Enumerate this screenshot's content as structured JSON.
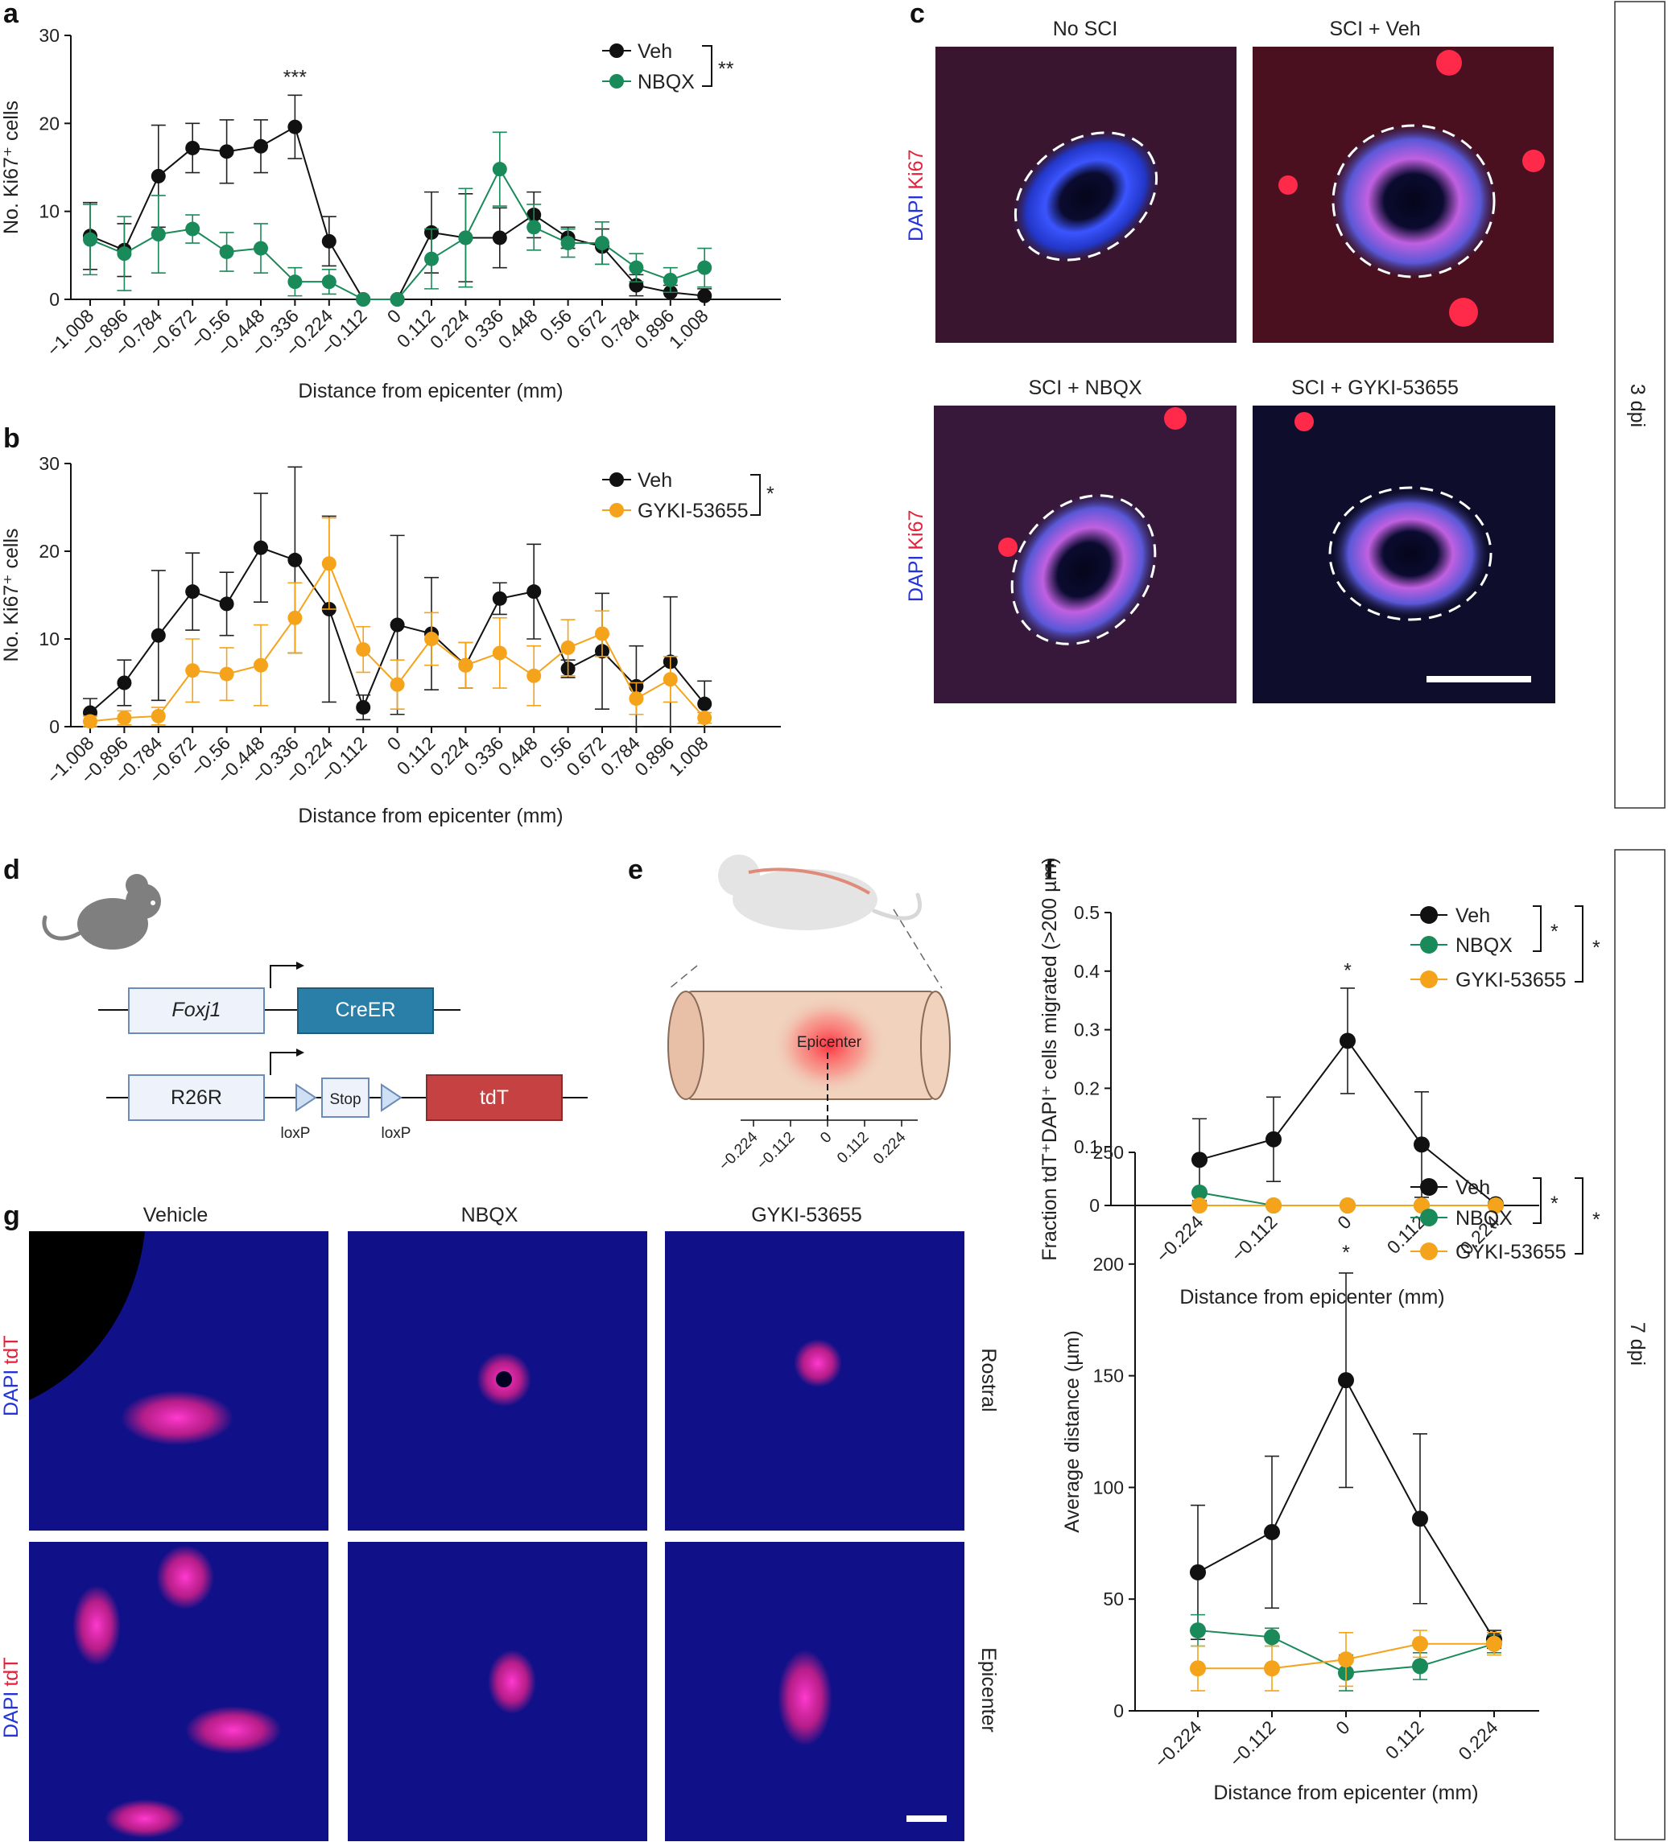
{
  "panels": {
    "a": "a",
    "b": "b",
    "c": "c",
    "d": "d",
    "e": "e",
    "f": "f",
    "g": "g"
  },
  "colors": {
    "veh": "#111111",
    "nbqx": "#1a8a5a",
    "gyki": "#f5a31a",
    "dapi": "#2233dd",
    "stain": "#e8203a"
  },
  "side_labels": {
    "top": "3 dpi",
    "bottom": "7 dpi"
  },
  "chart_data": [
    {
      "id": "a",
      "type": "line",
      "ylabel": "No. Ki67⁺ cells",
      "xlabel": "Distance from epicenter (mm)",
      "ylim": [
        0,
        30
      ],
      "yticks": [
        0,
        10,
        20,
        30
      ],
      "categories": [
        "−1.008",
        "−0.896",
        "−0.784",
        "−0.672",
        "−0.56",
        "−0.448",
        "−0.336",
        "−0.224",
        "−0.112",
        "0",
        "0.112",
        "0.224",
        "0.336",
        "0.448",
        "0.56",
        "0.672",
        "0.784",
        "0.896",
        "1.008"
      ],
      "series": [
        {
          "name": "Veh",
          "color": "#111111",
          "values": [
            7.2,
            5.6,
            14.0,
            17.2,
            16.8,
            17.4,
            19.6,
            6.6,
            0,
            0,
            7.6,
            7.0,
            7.0,
            9.6,
            7.0,
            6.0,
            1.6,
            0.8,
            0.4
          ],
          "err": [
            3.8,
            3.0,
            5.8,
            2.8,
            3.6,
            3.0,
            3.6,
            2.8,
            0,
            0,
            4.6,
            5.0,
            3.4,
            2.6,
            1.2,
            2.0,
            1.2,
            0.8,
            0.8
          ]
        },
        {
          "name": "NBQX",
          "color": "#1a8a5a",
          "values": [
            6.8,
            5.2,
            7.4,
            8.0,
            5.4,
            5.8,
            2.0,
            2.0,
            0,
            0,
            4.6,
            7.0,
            14.8,
            8.2,
            6.4,
            6.4,
            3.6,
            2.2,
            3.6
          ],
          "err": [
            4.0,
            4.2,
            4.4,
            1.6,
            2.2,
            2.8,
            1.6,
            1.4,
            0,
            0,
            3.4,
            5.6,
            4.2,
            2.6,
            1.6,
            2.4,
            1.6,
            1.4,
            2.2
          ]
        }
      ],
      "annotations": [
        "***",
        "**"
      ]
    },
    {
      "id": "b",
      "type": "line",
      "ylabel": "No. Ki67⁺ cells",
      "xlabel": "Distance from epicenter (mm)",
      "ylim": [
        0,
        30
      ],
      "yticks": [
        0,
        10,
        20,
        30
      ],
      "categories": [
        "−1.008",
        "−0.896",
        "−0.784",
        "−0.672",
        "−0.56",
        "−0.448",
        "−0.336",
        "−0.224",
        "−0.112",
        "0",
        "0.112",
        "0.224",
        "0.336",
        "0.448",
        "0.56",
        "0.672",
        "0.784",
        "0.896",
        "1.008"
      ],
      "series": [
        {
          "name": "Veh",
          "color": "#111111",
          "values": [
            1.6,
            5.0,
            10.4,
            15.4,
            14.0,
            20.4,
            19.0,
            13.4,
            2.2,
            11.6,
            10.6,
            7.0,
            14.6,
            15.4,
            6.6,
            8.6,
            4.6,
            7.4,
            2.6
          ],
          "err": [
            1.6,
            2.6,
            7.4,
            4.4,
            3.6,
            6.2,
            10.6,
            10.6,
            1.4,
            10.2,
            6.4,
            2.6,
            1.8,
            5.4,
            1.0,
            6.6,
            4.6,
            7.4,
            2.6
          ]
        },
        {
          "name": "GYKI-53655",
          "color": "#f5a31a",
          "values": [
            0.6,
            1.0,
            1.2,
            6.4,
            6.0,
            7.0,
            12.4,
            18.6,
            8.8,
            4.8,
            10.0,
            7.0,
            8.4,
            5.8,
            9.0,
            10.6,
            3.2,
            5.4,
            1.0
          ],
          "err": [
            0.6,
            0.8,
            1.0,
            3.6,
            3.0,
            4.6,
            4.0,
            5.2,
            2.6,
            2.8,
            3.0,
            2.6,
            4.0,
            3.4,
            3.2,
            2.6,
            1.8,
            2.6,
            0.6
          ]
        }
      ],
      "annotations": [
        "*"
      ]
    },
    {
      "id": "f_top",
      "type": "line",
      "ylabel": "Fraction tdT⁺DAPI⁺ cells migrated (>200 µm)",
      "xlabel": "Distance from epicenter (mm)",
      "ylim": [
        0,
        0.5
      ],
      "yticks": [
        0,
        0.1,
        0.2,
        0.3,
        0.4,
        0.5
      ],
      "categories": [
        "−0.224",
        "−0.112",
        "0",
        "0.112",
        "0.224"
      ],
      "series": [
        {
          "name": "Veh",
          "color": "#111111",
          "values": [
            0.078,
            0.113,
            0.281,
            0.104,
            0.002
          ],
          "err": [
            0.07,
            0.072,
            0.09,
            0.09,
            0.003
          ]
        },
        {
          "name": "NBQX",
          "color": "#1a8a5a",
          "values": [
            0.022,
            0,
            0,
            0,
            0
          ],
          "err": [
            0,
            0,
            0,
            0,
            0
          ]
        },
        {
          "name": "GYKI-53655",
          "color": "#f5a31a",
          "values": [
            0,
            0,
            0,
            0,
            0
          ],
          "err": [
            0,
            0,
            0,
            0,
            0
          ]
        }
      ],
      "annotations": [
        "*",
        "*",
        "*"
      ]
    },
    {
      "id": "f_bottom",
      "type": "line",
      "ylabel": "Average distance (µm)",
      "xlabel": "Distance from epicenter (mm)",
      "ylim": [
        0,
        250
      ],
      "yticks": [
        0,
        50,
        100,
        150,
        200,
        250
      ],
      "categories": [
        "−0.224",
        "−0.112",
        "0",
        "0.112",
        "0.224"
      ],
      "series": [
        {
          "name": "Veh",
          "color": "#111111",
          "values": [
            62,
            80,
            148,
            86,
            32
          ],
          "err": [
            30,
            34,
            48,
            38,
            4
          ]
        },
        {
          "name": "NBQX",
          "color": "#1a8a5a",
          "values": [
            36,
            33,
            17,
            20,
            30
          ],
          "err": [
            7,
            4,
            8,
            6,
            4
          ]
        },
        {
          "name": "GYKI-53655",
          "color": "#f5a31a",
          "values": [
            19,
            19,
            23,
            30,
            30
          ],
          "err": [
            10,
            10,
            12,
            6,
            5
          ]
        }
      ],
      "annotations": [
        "*",
        "*",
        "*"
      ]
    }
  ],
  "panel_c": {
    "titles": [
      "No SCI",
      "SCI + Veh",
      "SCI + NBQX",
      "SCI + GYKI-53655"
    ],
    "stain_dapi": "DAPI",
    "stain_other": "Ki67"
  },
  "panel_d": {
    "gene1": "Foxj1",
    "gene1_out": "CreER",
    "gene2": "R26R",
    "stop": "Stop",
    "reporter": "tdT",
    "loxp": "loxP"
  },
  "panel_e": {
    "epicenter": "Epicenter",
    "ticks": [
      "−0.224",
      "−0.112",
      "0",
      "0.112",
      "0.224"
    ]
  },
  "panel_g": {
    "columns": [
      "Vehicle",
      "NBQX",
      "GYKI-53655"
    ],
    "rows": [
      "Rostral",
      "Epicenter"
    ],
    "stain_dapi": "DAPI",
    "stain_other": "tdT"
  }
}
